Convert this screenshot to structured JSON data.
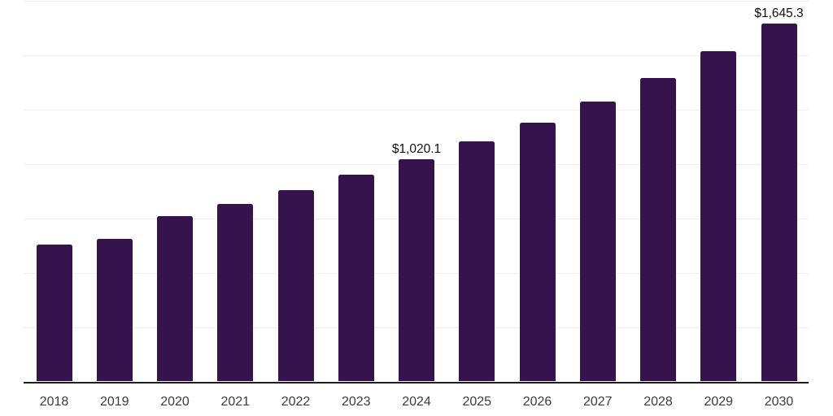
{
  "chart_data": {
    "type": "bar",
    "title": "",
    "xlabel": "",
    "ylabel": "",
    "legend": "none",
    "grid": "horizontal",
    "y_tick_labels_visible": false,
    "ylim": [
      0,
      1750
    ],
    "gridline_step": 250,
    "categories": [
      "2018",
      "2019",
      "2020",
      "2021",
      "2022",
      "2023",
      "2024",
      "2025",
      "2026",
      "2027",
      "2028",
      "2029",
      "2030"
    ],
    "values": [
      630,
      654,
      761,
      816,
      877,
      951,
      1020.1,
      1103,
      1190,
      1286,
      1393,
      1517,
      1645.3
    ],
    "data_labels": {
      "2024": "$1,020.1",
      "2030": "$1,645.3"
    },
    "colors": {
      "bar": "#36134d",
      "gridline": "#f0f0f1",
      "axis_line": "#1c1c1e",
      "tick_label": "#3b3b3b",
      "data_label": "#0e0e0e",
      "background": "#ffffff"
    }
  }
}
